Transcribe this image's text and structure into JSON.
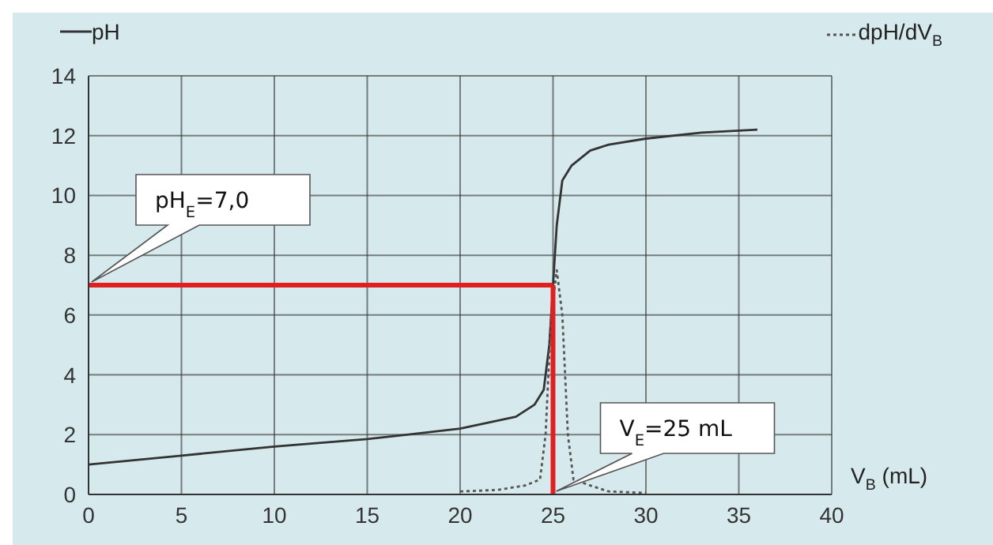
{
  "chart_data": {
    "type": "line",
    "xlabel": "V$_{B}$ (mL)",
    "xlim": [
      0,
      40
    ],
    "xticks": [
      0,
      5,
      10,
      15,
      20,
      25,
      30,
      35,
      40
    ],
    "ylim": [
      0,
      14
    ],
    "yticks": [
      0,
      2,
      4,
      6,
      8,
      10,
      12,
      14
    ],
    "grid": true,
    "legend": "top",
    "marker": "none",
    "series": [
      {
        "name": "pH",
        "color": "#333333",
        "line_style": "solid",
        "x": [
          0,
          5,
          10,
          15,
          20,
          23,
          24,
          24.5,
          24.8,
          25,
          25.2,
          25.5,
          26,
          27,
          28,
          30,
          33,
          36
        ],
        "values": [
          1.0,
          1.3,
          1.6,
          1.85,
          2.2,
          2.6,
          3.0,
          3.5,
          5,
          7,
          9,
          10.5,
          11.0,
          11.5,
          11.7,
          11.9,
          12.1,
          12.2
        ]
      },
      {
        "name": "dpH/dV$_{B}$",
        "color": "#555555",
        "line_style": "dotted",
        "x": [
          20,
          22,
          23.5,
          24.3,
          24.6,
          24.9,
          25.2,
          25.5,
          25.8,
          26.1,
          27,
          28,
          30
        ],
        "values": [
          0.1,
          0.15,
          0.3,
          0.5,
          2,
          6,
          7.5,
          6,
          2,
          0.5,
          0.3,
          0.1,
          0.05
        ]
      }
    ],
    "ref_lines": [
      {
        "axis": "y",
        "value": 7,
        "label": "pH$_{E}$=7,0",
        "color": "#e02020"
      },
      {
        "axis": "x",
        "value": 25,
        "label": "V$_{E}$=25 mL",
        "color": "#e02020"
      }
    ]
  }
}
